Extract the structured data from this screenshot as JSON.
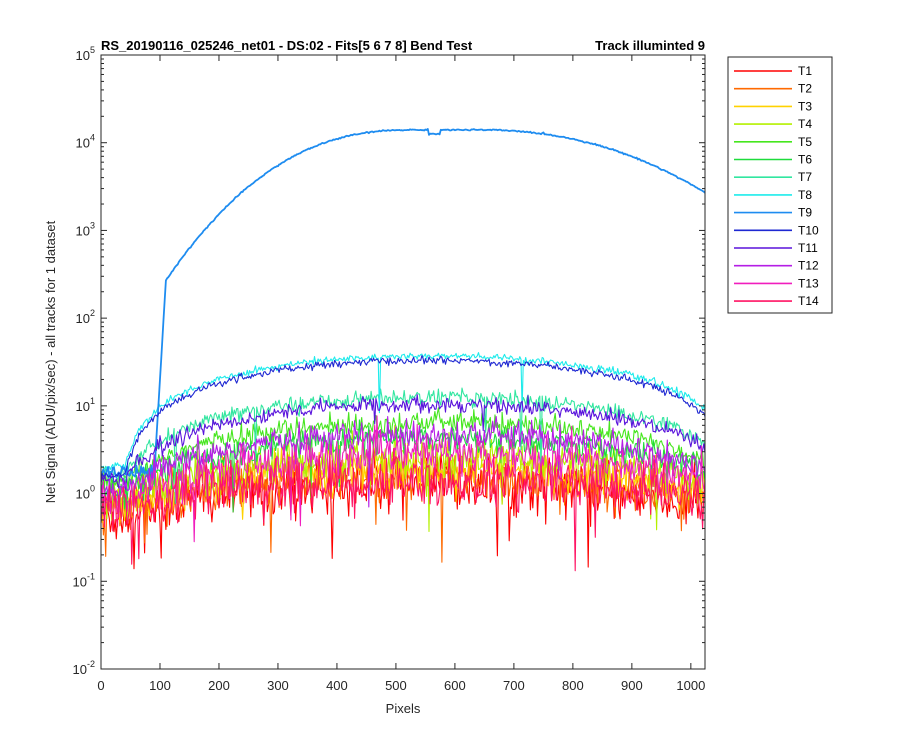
{
  "chart_data": {
    "type": "line",
    "title_left": "RS_20190116_025246_net01 - DS:02 - Fits[5  6  7  8]   Bend Test",
    "title_right": "Track illuminted 9",
    "xlabel": "Pixels",
    "ylabel": "Net Signal (ADU/pix/sec) - all tracks for 1 dataset",
    "xlim": [
      0,
      1024
    ],
    "ylim": [
      0.01,
      100000
    ],
    "yscale": "log",
    "grid": false,
    "legend_position": "outside-top-right",
    "x_ticks": [
      "0",
      "100",
      "200",
      "300",
      "400",
      "500",
      "600",
      "700",
      "800",
      "900",
      "1000"
    ],
    "y_ticks": [
      {
        "base": "10",
        "exp": "-2"
      },
      {
        "base": "10",
        "exp": "-1"
      },
      {
        "base": "10",
        "exp": "0"
      },
      {
        "base": "10",
        "exp": "1"
      },
      {
        "base": "10",
        "exp": "2"
      },
      {
        "base": "10",
        "exp": "3"
      },
      {
        "base": "10",
        "exp": "4"
      },
      {
        "base": "10",
        "exp": "5"
      }
    ],
    "series": [
      {
        "name": "T1",
        "color": "#ff0000",
        "peak": 1.3,
        "edge": 0.55,
        "noise": 0.9
      },
      {
        "name": "T2",
        "color": "#ff6a00",
        "peak": 1.6,
        "edge": 0.7,
        "noise": 0.8
      },
      {
        "name": "T3",
        "color": "#ffd200",
        "peak": 2.0,
        "edge": 0.8,
        "noise": 0.7
      },
      {
        "name": "T4",
        "color": "#b4f000",
        "peak": 2.6,
        "edge": 0.9,
        "noise": 0.6
      },
      {
        "name": "T5",
        "color": "#46e61e",
        "peak": 6.5,
        "edge": 1.3,
        "noise": 0.35
      },
      {
        "name": "T6",
        "color": "#1edc3c",
        "peak": 4.2,
        "edge": 1.1,
        "noise": 0.45
      },
      {
        "name": "T7",
        "color": "#32e6a0",
        "peak": 12.5,
        "edge": 1.6,
        "noise": 0.25
      },
      {
        "name": "T8",
        "color": "#1eebeb",
        "peak": 37,
        "edge": 2.0,
        "noise": 0.12
      },
      {
        "name": "T9",
        "color": "#1e8cf0",
        "peak": 14000,
        "edge": 2.6,
        "noise": 0.05
      },
      {
        "name": "T10",
        "color": "#1e28d2",
        "peak": 33,
        "edge": 1.6,
        "noise": 0.12
      },
      {
        "name": "T11",
        "color": "#5a14dc",
        "peak": 10.5,
        "edge": 1.4,
        "noise": 0.25
      },
      {
        "name": "T12",
        "color": "#b41ee6",
        "peak": 4.8,
        "edge": 1.0,
        "noise": 0.45
      },
      {
        "name": "T13",
        "color": "#f01ebe",
        "peak": 2.8,
        "edge": 0.9,
        "noise": 0.65
      },
      {
        "name": "T14",
        "color": "#ff1464",
        "peak": 1.4,
        "edge": 0.7,
        "noise": 0.8
      }
    ]
  }
}
